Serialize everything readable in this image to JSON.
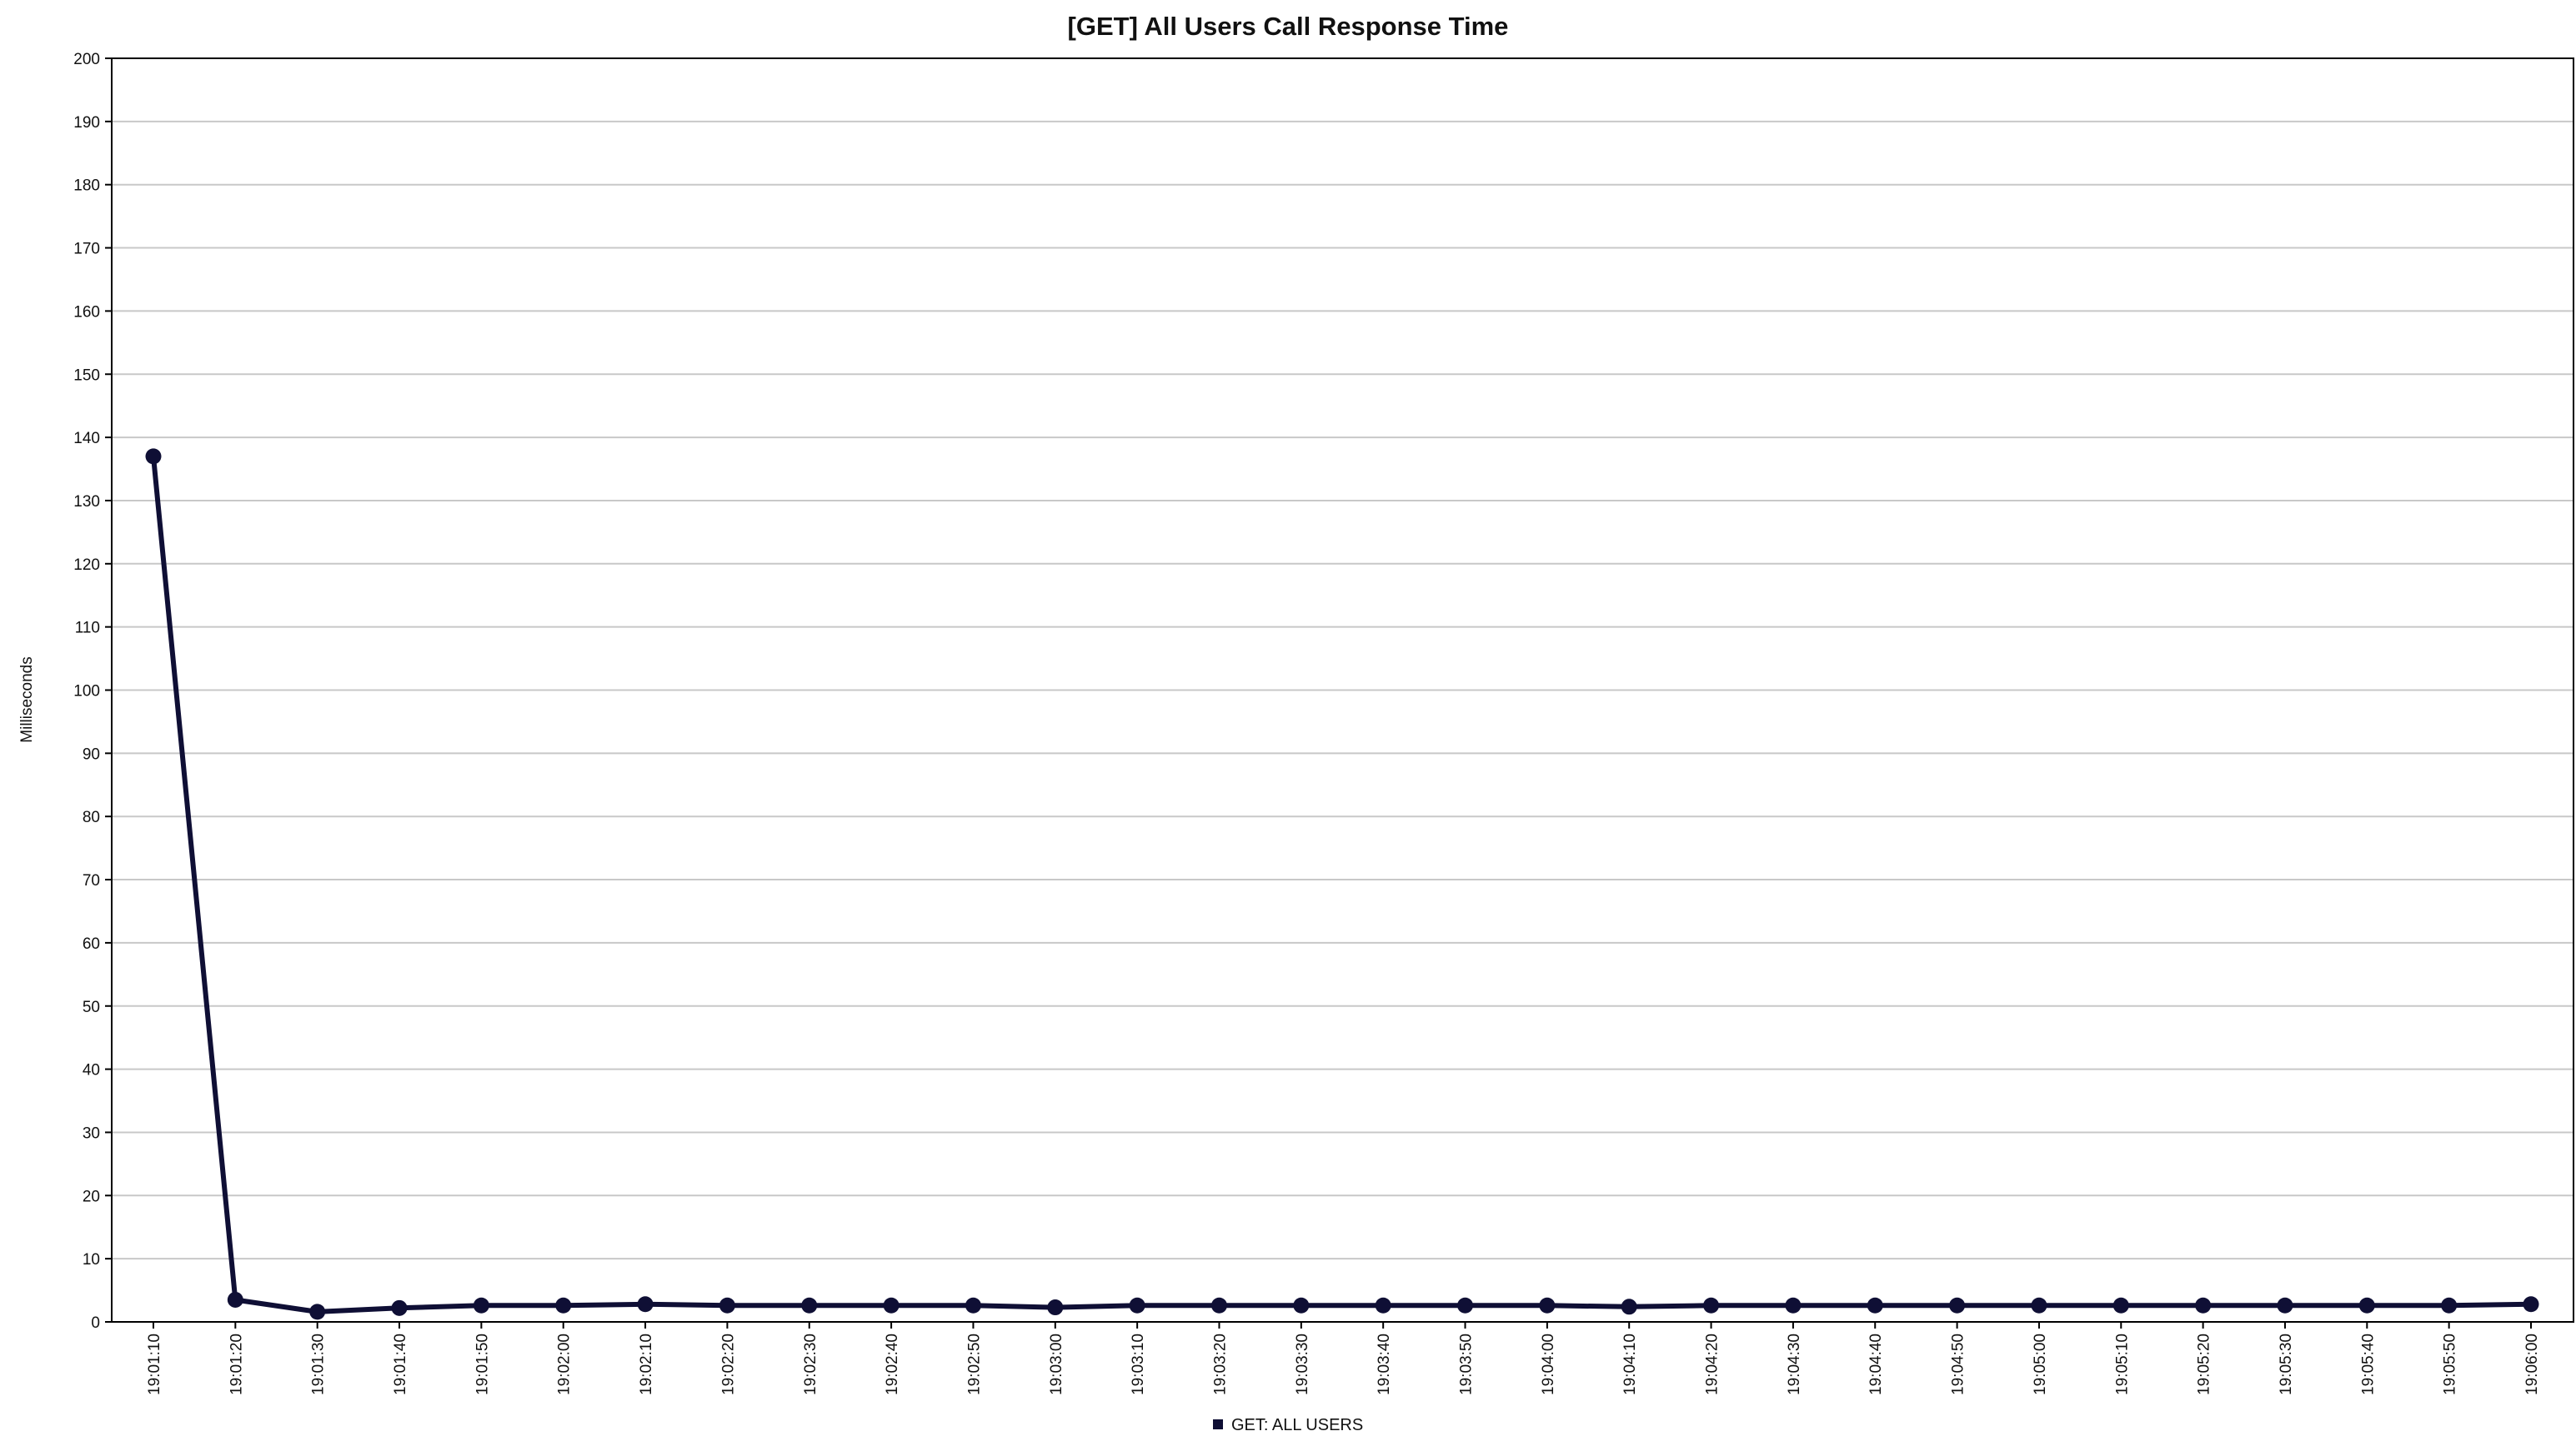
{
  "chart_data": {
    "type": "line",
    "title": "[GET] All Users Call Response Time",
    "xlabel": "",
    "ylabel": "Milliseconds",
    "ylim": [
      0,
      200
    ],
    "yticks": [
      "0",
      "10",
      "20",
      "30",
      "40",
      "50",
      "60",
      "70",
      "80",
      "90",
      "100",
      "110",
      "120",
      "130",
      "140",
      "150",
      "160",
      "170",
      "180",
      "190",
      "200"
    ],
    "categories": [
      "19:01:10",
      "19:01:20",
      "19:01:30",
      "19:01:40",
      "19:01:50",
      "19:02:00",
      "19:02:10",
      "19:02:20",
      "19:02:30",
      "19:02:40",
      "19:02:50",
      "19:03:00",
      "19:03:10",
      "19:03:20",
      "19:03:30",
      "19:03:40",
      "19:03:50",
      "19:04:00",
      "19:04:10",
      "19:04:20",
      "19:04:30",
      "19:04:40",
      "19:04:50",
      "19:05:00",
      "19:05:10",
      "19:05:20",
      "19:05:30",
      "19:05:40",
      "19:05:50",
      "19:06:00"
    ],
    "series": [
      {
        "name": "GET: ALL USERS",
        "color": "#0f0f35",
        "values": [
          137,
          3.5,
          1.6,
          2.2,
          2.6,
          2.6,
          2.8,
          2.6,
          2.6,
          2.6,
          2.6,
          2.3,
          2.6,
          2.6,
          2.6,
          2.6,
          2.6,
          2.6,
          2.4,
          2.6,
          2.6,
          2.6,
          2.6,
          2.6,
          2.6,
          2.6,
          2.6,
          2.6,
          2.6,
          2.8
        ]
      }
    ],
    "grid": true,
    "legend_position": "bottom-center"
  }
}
